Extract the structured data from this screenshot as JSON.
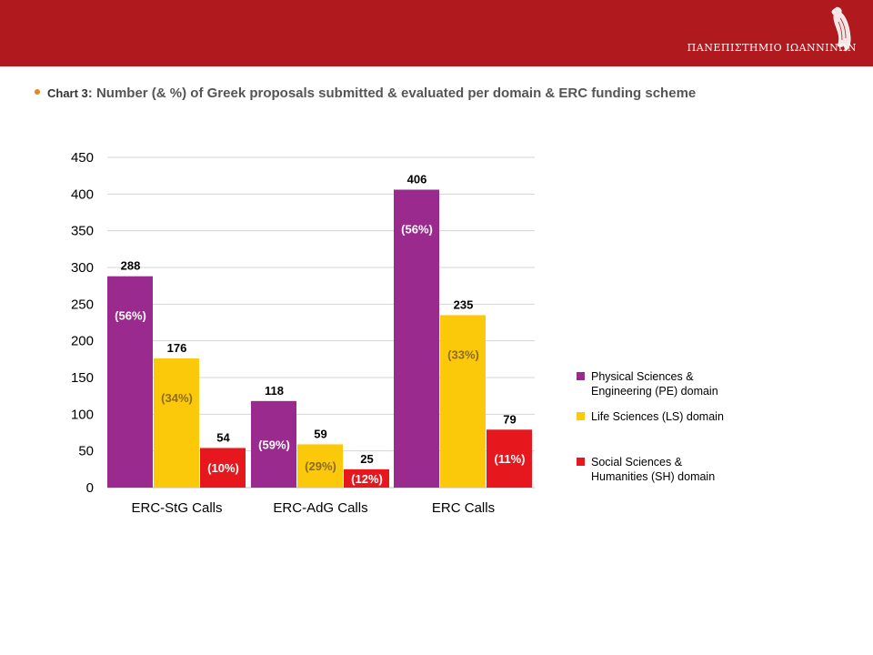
{
  "header": {
    "university": "ΠΑΝΕΠΙΣΤΗΜΙΟ ΙΩΑΝΝΙΝΩΝ",
    "banner_color": "#b0191d",
    "logo_icon": "eagle-logo-icon"
  },
  "headline": {
    "prefix": "Chart 3",
    "separator": ": ",
    "text": "Number (& %) of Greek proposals submitted & evaluated per domain & ERC funding scheme",
    "bullet_color": "#e8861a"
  },
  "chart_data": {
    "type": "bar",
    "categories": [
      "ERC-StG Calls",
      "ERC-AdG Calls",
      "ERC Calls"
    ],
    "ylim": [
      0,
      450
    ],
    "yticks": [
      0,
      50,
      100,
      150,
      200,
      250,
      300,
      350,
      400,
      450
    ],
    "grid": true,
    "legend_position": "right",
    "series": [
      {
        "legend_lines": [
          "Physical Sciences &",
          "Engineering (PE) domain"
        ],
        "color": "#9a2a8e",
        "pct_color": "#ffffff",
        "values": [
          288,
          118,
          406
        ],
        "percent_labels": [
          "(56%)",
          "(59%)",
          "(56%)"
        ]
      },
      {
        "legend_lines": [
          "Life Sciences (LS) domain"
        ],
        "color": "#fcc80a",
        "pct_color": "#8a6d1e",
        "values": [
          176,
          59,
          235
        ],
        "percent_labels": [
          "(34%)",
          "(29%)",
          "(33%)"
        ]
      },
      {
        "legend_lines": [
          "Social Sciences &",
          "Humanities (SH) domain"
        ],
        "color": "#e6181e",
        "pct_color": "#ffffff",
        "values": [
          54,
          25,
          79
        ],
        "percent_labels": [
          "(10%)",
          "(12%)",
          "(11%)"
        ]
      }
    ]
  }
}
